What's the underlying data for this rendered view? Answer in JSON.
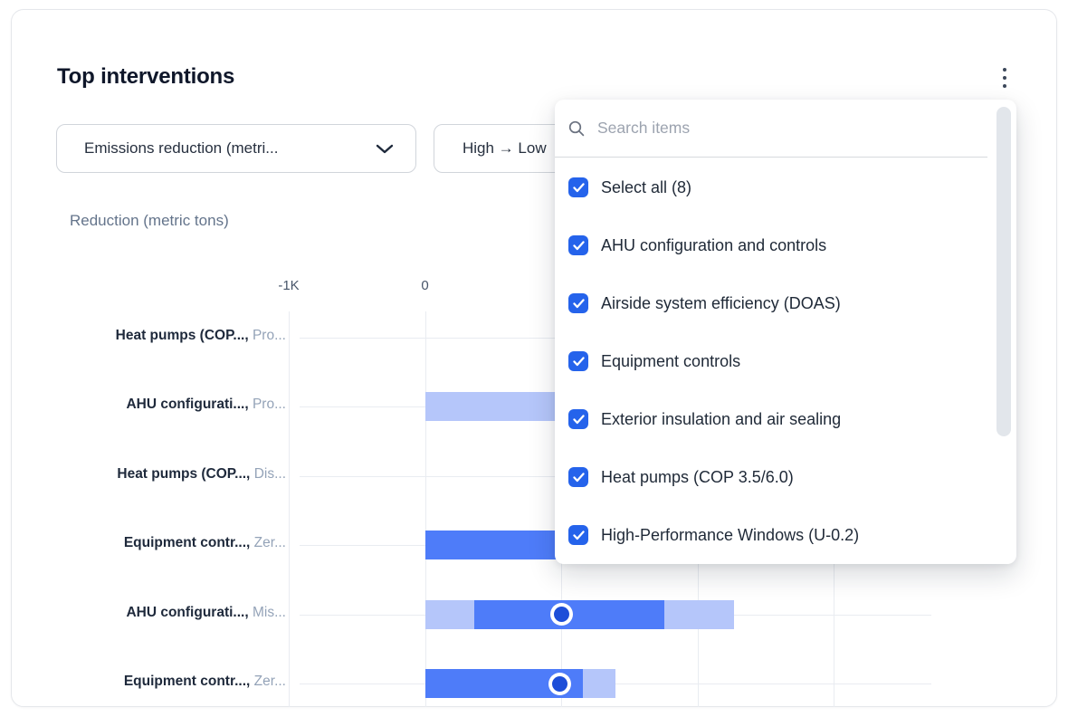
{
  "card": {
    "title": "Top interventions",
    "kebab_icon": "kebab-menu"
  },
  "filters": {
    "metric_dropdown": {
      "value": "Emissions reduction (metri...",
      "icon": "chevron-down"
    },
    "sort_dropdown": {
      "value": "High → Low",
      "icon": "chevron-down"
    }
  },
  "dropdown_panel": {
    "search": {
      "placeholder": "Search items",
      "icon": "search"
    },
    "items": [
      {
        "label": "Select all (8)",
        "checked": true
      },
      {
        "label": "AHU configuration and controls",
        "checked": true
      },
      {
        "label": "Airside system efficiency (DOAS)",
        "checked": true
      },
      {
        "label": "Equipment controls",
        "checked": true
      },
      {
        "label": "Exterior insulation and air sealing",
        "checked": true
      },
      {
        "label": "Heat pumps (COP 3.5/6.0)",
        "checked": true
      },
      {
        "label": "High-Performance Windows (U-0.2)",
        "checked": true
      }
    ]
  },
  "chart_data": {
    "type": "bar",
    "orientation": "horizontal",
    "axis_label": "Reduction (metric tons)",
    "unit": "metric tons",
    "xlim": [
      -1000,
      3650
    ],
    "grid_values": [
      -1000,
      0,
      1000,
      2000,
      3000
    ],
    "x_ticks": [
      {
        "label": "-1K",
        "value": -1000
      },
      {
        "label": "0",
        "value": 0
      }
    ],
    "colors": {
      "range_light": "#b5c6fa",
      "bar_dark": "#4e7cf9",
      "marker_fill": "#1d4ed8",
      "grid": "#e9ecf1"
    },
    "rows": [
      {
        "label_primary": "Heat pumps (COP...,",
        "label_secondary": "Pro...",
        "segments": [],
        "marker": null
      },
      {
        "label_primary": "AHU configurati...,",
        "label_secondary": "Pro...",
        "segments": [
          {
            "kind": "range",
            "from": 0,
            "to": 1300
          }
        ],
        "marker": null
      },
      {
        "label_primary": "Heat pumps (COP...,",
        "label_secondary": "Dis...",
        "segments": [],
        "marker": null
      },
      {
        "label_primary": "Equipment contr...,",
        "label_secondary": "Zer...",
        "segments": [
          {
            "kind": "bar",
            "from": 0,
            "to": 1300
          }
        ],
        "marker": null
      },
      {
        "label_primary": "AHU configurati...,",
        "label_secondary": "Mis...",
        "segments": [
          {
            "kind": "range",
            "from": 0,
            "to": 360
          },
          {
            "kind": "bar",
            "from": 360,
            "to": 1760
          },
          {
            "kind": "range",
            "from": 1760,
            "to": 2270
          }
        ],
        "marker": 1000
      },
      {
        "label_primary": "Equipment contr...,",
        "label_secondary": "Zer...",
        "segments": [
          {
            "kind": "bar",
            "from": 0,
            "to": 1160
          },
          {
            "kind": "range",
            "from": 1160,
            "to": 1400
          }
        ],
        "marker": 990
      }
    ]
  }
}
